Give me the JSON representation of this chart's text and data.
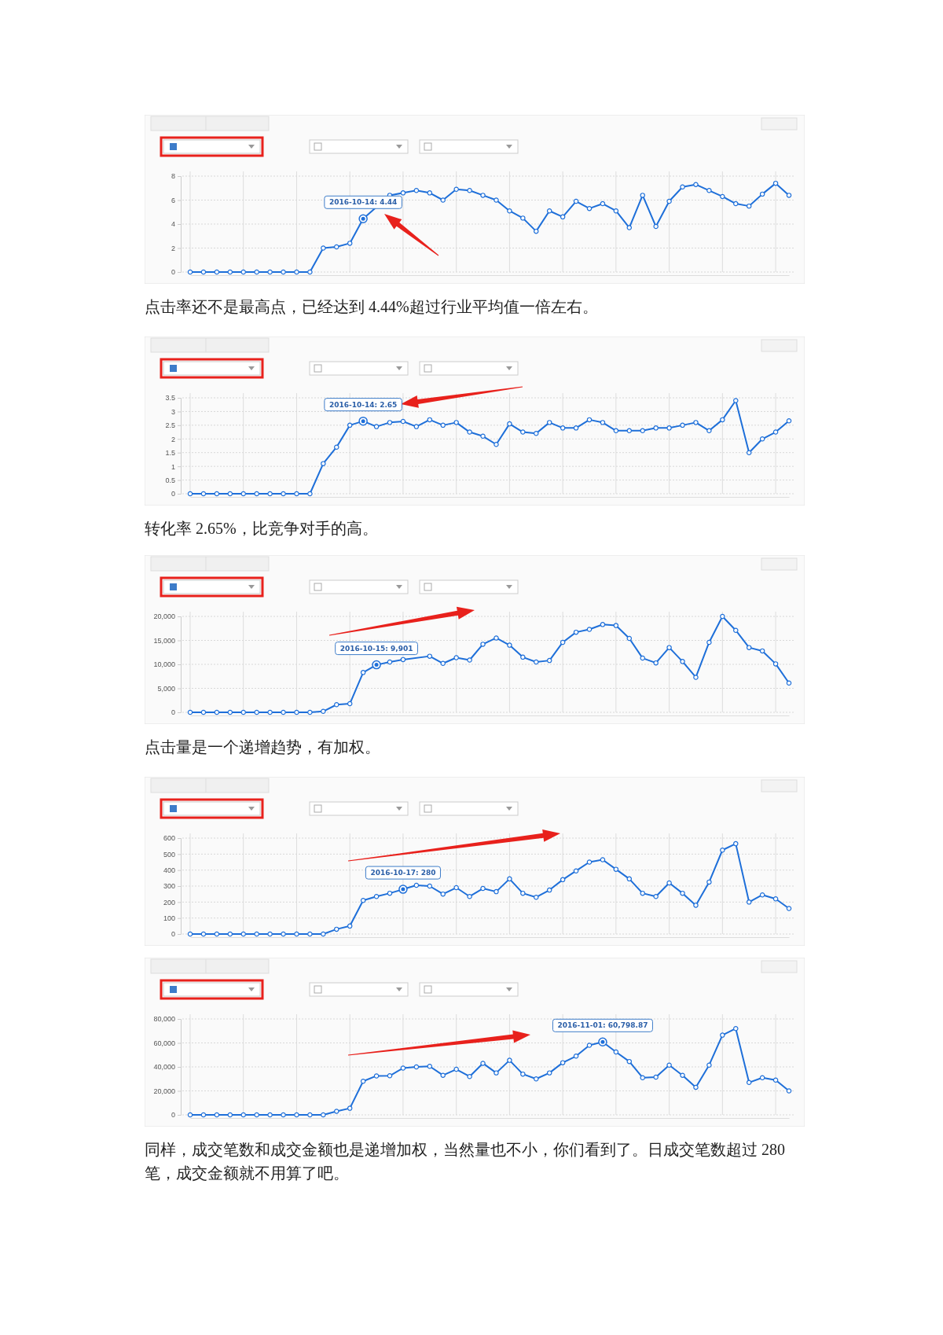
{
  "chart_data": [
    {
      "type": "line",
      "categories": [
        null,
        null,
        null,
        null,
        null,
        null,
        null,
        null,
        null,
        null,
        null,
        null,
        null,
        null,
        null,
        null,
        null,
        null,
        null,
        null,
        null,
        null,
        null,
        null,
        null,
        null,
        null,
        null,
        null,
        null,
        null,
        null,
        null,
        null,
        null,
        null,
        null,
        null,
        null,
        null,
        null,
        null,
        null,
        null,
        null,
        null
      ],
      "series": [
        {
          "color": "#1e6fd9",
          "values": [
            0,
            0,
            0,
            0,
            0,
            0,
            0,
            0,
            0,
            0,
            2.0,
            2.1,
            2.4,
            4.44,
            null,
            6.4,
            6.6,
            6.8,
            6.6,
            6.0,
            6.9,
            6.8,
            6.4,
            6.0,
            5.1,
            4.5,
            3.4,
            5.1,
            4.6,
            5.9,
            5.3,
            5.7,
            5.1,
            3.7,
            6.4,
            3.8,
            5.9,
            7.1,
            7.3,
            6.8,
            6.3,
            5.7,
            5.5,
            6.5,
            7.4,
            6.4
          ]
        }
      ],
      "ylim": [
        0,
        8
      ],
      "yticks": [
        0,
        2,
        4,
        6,
        8
      ],
      "grid": true,
      "marker": "circle",
      "tick_labels": "y",
      "annotations": [
        {
          "text": "2016-10-14: 4.44",
          "y": 4.44
        },
        "点击率还不是最高点，已经达到 4.44%超过行业平均值一倍左右。"
      ]
    },
    {
      "type": "line",
      "categories": [
        null,
        null,
        null,
        null,
        null,
        null,
        null,
        null,
        null,
        null,
        null,
        null,
        null,
        null,
        null,
        null,
        null,
        null,
        null,
        null,
        null,
        null,
        null,
        null,
        null,
        null,
        null,
        null,
        null,
        null,
        null,
        null,
        null,
        null,
        null,
        null,
        null,
        null,
        null,
        null,
        null,
        null,
        null,
        null,
        null,
        null
      ],
      "series": [
        {
          "color": "#1e6fd9",
          "values": [
            0,
            0,
            0,
            0,
            0,
            0,
            0,
            0,
            0,
            0,
            1.1,
            1.7,
            2.5,
            2.65,
            2.45,
            2.6,
            2.64,
            2.45,
            2.7,
            2.5,
            2.6,
            2.25,
            2.1,
            1.8,
            2.55,
            2.25,
            2.2,
            2.6,
            2.4,
            2.4,
            2.7,
            2.6,
            2.3,
            2.3,
            2.3,
            2.4,
            2.4,
            2.5,
            2.6,
            2.3,
            2.7,
            3.4,
            1.5,
            2.0,
            2.25,
            2.66
          ]
        }
      ],
      "ylim": [
        0,
        3.5
      ],
      "yticks": [
        0,
        0.5,
        1,
        1.5,
        2,
        2.5,
        3,
        3.5
      ],
      "grid": true,
      "marker": "circle",
      "tick_labels": "y",
      "annotations": [
        {
          "text": "2016-10-14: 2.65",
          "y": 2.65
        },
        "转化率 2.65%，比竞争对手的高。"
      ]
    },
    {
      "type": "line",
      "categories": [
        null,
        null,
        null,
        null,
        null,
        null,
        null,
        null,
        null,
        null,
        null,
        null,
        null,
        null,
        null,
        null,
        null,
        null,
        null,
        null,
        null,
        null,
        null,
        null,
        null,
        null,
        null,
        null,
        null,
        null,
        null,
        null,
        null,
        null,
        null,
        null,
        null,
        null,
        null,
        null,
        null,
        null,
        null,
        null,
        null,
        null
      ],
      "series": [
        {
          "color": "#1e6fd9",
          "values": [
            0,
            0,
            0,
            0,
            0,
            0,
            0,
            0,
            0,
            0,
            200,
            1600,
            1800,
            8300,
            9901,
            10500,
            11000,
            null,
            11700,
            10200,
            11400,
            10900,
            14200,
            15500,
            14000,
            11500,
            10500,
            10800,
            14600,
            16700,
            17300,
            18300,
            18100,
            15400,
            11300,
            10300,
            13500,
            10600,
            7300,
            14600,
            20000,
            17100,
            13500,
            12800,
            10100,
            6100
          ]
        }
      ],
      "ylim": [
        0,
        20000
      ],
      "yticks": [
        0,
        {
          "value": 5000,
          "label": "5,000"
        },
        {
          "value": 10000,
          "label": "10,000"
        },
        {
          "value": 15000,
          "label": "15,000"
        },
        {
          "value": 20000,
          "label": "20,000"
        }
      ],
      "grid": true,
      "marker": "circle",
      "tick_labels": "y",
      "annotations": [
        {
          "text": "2016-10-15: 9,901",
          "y": 9901
        },
        "点击量是一个递增趋势，有加权。"
      ]
    },
    {
      "type": "line",
      "categories": [
        null,
        null,
        null,
        null,
        null,
        null,
        null,
        null,
        null,
        null,
        null,
        null,
        null,
        null,
        null,
        null,
        null,
        null,
        null,
        null,
        null,
        null,
        null,
        null,
        null,
        null,
        null,
        null,
        null,
        null,
        null,
        null,
        null,
        null,
        null,
        null,
        null,
        null,
        null,
        null,
        null,
        null,
        null,
        null,
        null,
        null
      ],
      "series": [
        {
          "color": "#1e6fd9",
          "values": [
            0,
            0,
            0,
            0,
            0,
            0,
            0,
            0,
            0,
            0,
            0,
            30,
            50,
            210,
            235,
            255,
            280,
            305,
            300,
            250,
            290,
            235,
            285,
            265,
            345,
            255,
            230,
            275,
            340,
            395,
            450,
            465,
            405,
            345,
            255,
            235,
            320,
            255,
            180,
            325,
            525,
            565,
            200,
            245,
            220,
            160
          ]
        }
      ],
      "ylim": [
        0,
        600
      ],
      "yticks": [
        0,
        100,
        200,
        300,
        400,
        500,
        600
      ],
      "grid": true,
      "marker": "circle",
      "tick_labels": "y",
      "annotations": [
        {
          "text": "2016-10-17: 280",
          "y": 280
        }
      ]
    },
    {
      "type": "line",
      "categories": [
        null,
        null,
        null,
        null,
        null,
        null,
        null,
        null,
        null,
        null,
        null,
        null,
        null,
        null,
        null,
        null,
        null,
        null,
        null,
        null,
        null,
        null,
        null,
        null,
        null,
        null,
        null,
        null,
        null,
        null,
        null,
        null,
        null,
        null,
        null,
        null,
        null,
        null,
        null,
        null,
        null,
        null,
        null,
        null,
        null,
        null
      ],
      "series": [
        {
          "color": "#1e6fd9",
          "values": [
            0,
            0,
            0,
            0,
            0,
            0,
            0,
            0,
            0,
            0,
            0,
            3000,
            5500,
            28000,
            32500,
            32600,
            39000,
            40000,
            40500,
            33000,
            38000,
            32000,
            43000,
            35000,
            45500,
            34000,
            30000,
            35000,
            43500,
            49000,
            58000,
            60798.87,
            52500,
            44500,
            31000,
            31500,
            41500,
            33000,
            23000,
            41500,
            66500,
            72000,
            27000,
            31000,
            29000,
            20000
          ]
        }
      ],
      "ylim": [
        0,
        80000
      ],
      "yticks": [
        0,
        {
          "value": 20000,
          "label": "20,000"
        },
        {
          "value": 40000,
          "label": "40,000"
        },
        {
          "value": 60000,
          "label": "60,000"
        },
        {
          "value": 80000,
          "label": "80,000"
        }
      ],
      "grid": true,
      "marker": "circle",
      "tick_labels": "y",
      "annotations": [
        {
          "text": "2016-11-01: 60,798.87",
          "y": 60798.87
        },
        "同样，成交笔数和成交金额也是递增加权，当然量也不小，你们看到了。日成交笔数超过 280 笔，成交金额就不用算了吧。"
      ]
    }
  ]
}
